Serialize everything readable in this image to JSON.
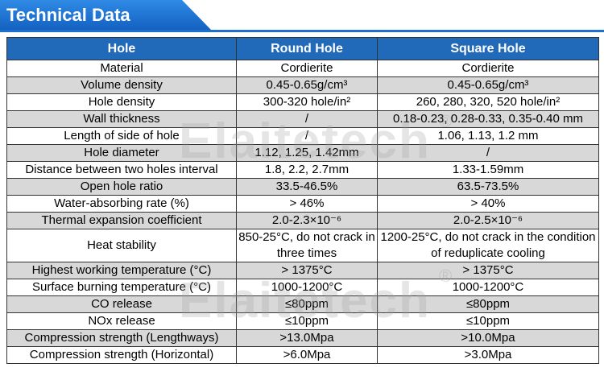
{
  "header": {
    "title": "Technical Data"
  },
  "table": {
    "columns": [
      "Hole",
      "Round Hole",
      "Square Hole"
    ],
    "rows": [
      {
        "label": "Material",
        "round": "Cordierite",
        "square": "Cordierite"
      },
      {
        "label": "Volume density",
        "round": "0.45-0.65g/cm³",
        "square": "0.45-0.65g/cm³"
      },
      {
        "label": "Hole density",
        "round": "300-320 hole/in²",
        "square": "260, 280, 320, 520 hole/in²"
      },
      {
        "label": "Wall thickness",
        "round": "/",
        "square": "0.18-0.23, 0.28-0.33, 0.35-0.40 mm"
      },
      {
        "label": "Length of side of hole",
        "round": "/",
        "square": "1.06, 1.13, 1.2 mm"
      },
      {
        "label": "Hole diameter",
        "round": "1.12, 1.25, 1.42mm",
        "square": "/"
      },
      {
        "label": "Distance between two holes interval",
        "round": "1.8, 2.2, 2.7mm",
        "square": "1.33-1.59mm"
      },
      {
        "label": "Open hole ratio",
        "round": "33.5-46.5%",
        "square": "63.5-73.5%"
      },
      {
        "label": "Water-absorbing rate (%)",
        "round": "> 46%",
        "square": "> 40%"
      },
      {
        "label": "Thermal expansion coefficient",
        "round": "2.0-2.3×10⁻⁶",
        "square": "2.0-2.5×10⁻⁶"
      },
      {
        "label": "Heat stability",
        "round": "850-25°C, do not crack in three times",
        "square": "1200-25°C, do not crack in the condition of reduplicate cooling"
      },
      {
        "label": "Highest working temperature (°C)",
        "round": "> 1375°C",
        "square": "> 1375°C"
      },
      {
        "label": "Surface burning temperature (°C)",
        "round": "1000-1200°C",
        "square": "1000-1200°C"
      },
      {
        "label": "CO release",
        "round": "≤80ppm",
        "square": "≤80ppm"
      },
      {
        "label": "NOx release",
        "round": "≤10ppm",
        "square": "≤10ppm"
      },
      {
        "label": "Compression strength (Lengthways)",
        "round": ">13.0Mpa",
        "square": ">10.0Mpa"
      },
      {
        "label": "Compression strength (Horizontal)",
        "round": ">6.0Mpa",
        "square": ">3.0Mpa"
      }
    ]
  },
  "watermark": {
    "text": "Elaitetech",
    "mark": "®"
  }
}
